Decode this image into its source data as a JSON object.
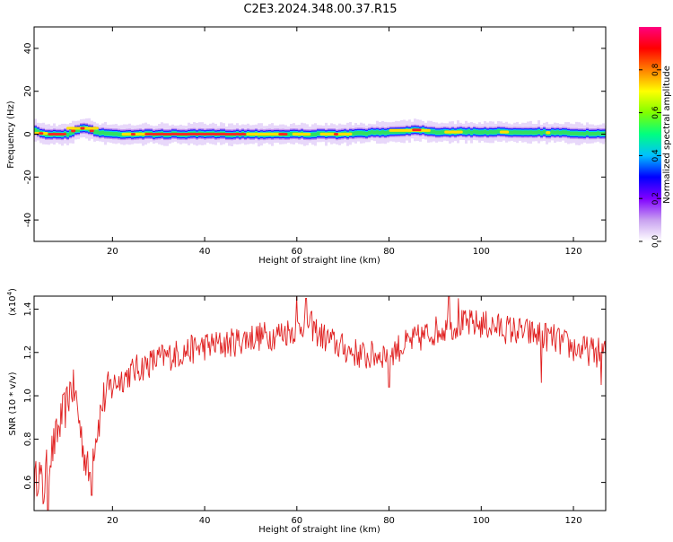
{
  "title": "C2E3.2024.348.00.37.R15",
  "chart_data": [
    {
      "type": "heatmap",
      "xlabel": "Height of straight line (km)",
      "ylabel": "Frequency (Hz)",
      "xlim": [
        3,
        127
      ],
      "ylim": [
        -50,
        50
      ],
      "xticks": [
        20,
        40,
        60,
        80,
        100,
        120
      ],
      "yticks": [
        -40,
        -20,
        0,
        20,
        40
      ],
      "colorbar": {
        "label": "Normalized spectral amplitude",
        "range": [
          0,
          1
        ],
        "ticks": [
          "0.0",
          "0.2",
          "0.4",
          "0.6",
          "0.8"
        ],
        "tick_values": [
          0.0,
          0.2,
          0.4,
          0.6,
          0.8
        ],
        "colors": [
          "#ffffff",
          "#c8a0f0",
          "#8000ff",
          "#0000ff",
          "#00c0ff",
          "#00ff80",
          "#80ff00",
          "#ffff00",
          "#ff8000",
          "#ff0000",
          "#ff0080"
        ]
      },
      "band": {
        "center_hz": [
          [
            3,
            1.5
          ],
          [
            5,
            0
          ],
          [
            10,
            0
          ],
          [
            12,
            2
          ],
          [
            14,
            3
          ],
          [
            16,
            1
          ],
          [
            20,
            0
          ],
          [
            60,
            0
          ],
          [
            70,
            0
          ],
          [
            80,
            1
          ],
          [
            86,
            2
          ],
          [
            90,
            1
          ],
          [
            110,
            1
          ],
          [
            127,
            0
          ]
        ],
        "red_segments_km": [
          [
            4,
            5
          ],
          [
            6,
            10
          ],
          [
            11,
            12
          ],
          [
            13,
            14
          ],
          [
            15,
            16
          ],
          [
            24,
            25
          ],
          [
            27,
            49
          ],
          [
            56,
            58
          ],
          [
            68,
            69
          ],
          [
            85,
            87
          ]
        ],
        "yellow_segments_km": [
          [
            3,
            6
          ],
          [
            10,
            17
          ],
          [
            22,
            28
          ],
          [
            49,
            57
          ],
          [
            59,
            63
          ],
          [
            65,
            72
          ],
          [
            80,
            89
          ],
          [
            92,
            96
          ],
          [
            104,
            106
          ],
          [
            114,
            115
          ]
        ]
      }
    },
    {
      "type": "line",
      "xlabel": "Height of straight line (km)",
      "ylabel": "SNR (10 * v/v)",
      "scale_label": "(x10",
      "scale_exp": "4",
      "scale_suffix": ")",
      "xlim": [
        3,
        127
      ],
      "ylim": [
        0.47,
        1.46
      ],
      "xticks": [
        20,
        40,
        60,
        80,
        100,
        120
      ],
      "yticks": [
        "0.6",
        "0.8",
        "1.0",
        "1.2",
        "1.4"
      ],
      "ytick_values": [
        0.6,
        0.8,
        1.0,
        1.2,
        1.4
      ],
      "color": "#e02020",
      "envelope": {
        "x": [
          3,
          4,
          5,
          6,
          7,
          8,
          9,
          10,
          11,
          12,
          13,
          14,
          15,
          16,
          18,
          20,
          22,
          25,
          30,
          35,
          40,
          45,
          50,
          55,
          60,
          62,
          65,
          70,
          75,
          80,
          85,
          90,
          95,
          100,
          105,
          110,
          115,
          120,
          125,
          127
        ],
        "y": [
          0.58,
          0.66,
          0.55,
          0.7,
          0.75,
          0.82,
          0.9,
          0.95,
          1.05,
          1.0,
          0.85,
          0.72,
          0.62,
          0.78,
          0.98,
          1.05,
          1.08,
          1.12,
          1.17,
          1.2,
          1.23,
          1.24,
          1.27,
          1.28,
          1.31,
          1.35,
          1.28,
          1.22,
          1.18,
          1.2,
          1.25,
          1.3,
          1.33,
          1.33,
          1.31,
          1.29,
          1.27,
          1.22,
          1.2,
          1.2
        ]
      },
      "noise_amplitude": 0.07,
      "spikes": [
        [
          5,
          0.5
        ],
        [
          6,
          0.47
        ],
        [
          15.5,
          0.54
        ],
        [
          60,
          1.46
        ],
        [
          62,
          1.45
        ],
        [
          93,
          1.46
        ],
        [
          95,
          1.45
        ],
        [
          80,
          1.04
        ],
        [
          113,
          1.06
        ],
        [
          126,
          1.05
        ]
      ]
    }
  ]
}
